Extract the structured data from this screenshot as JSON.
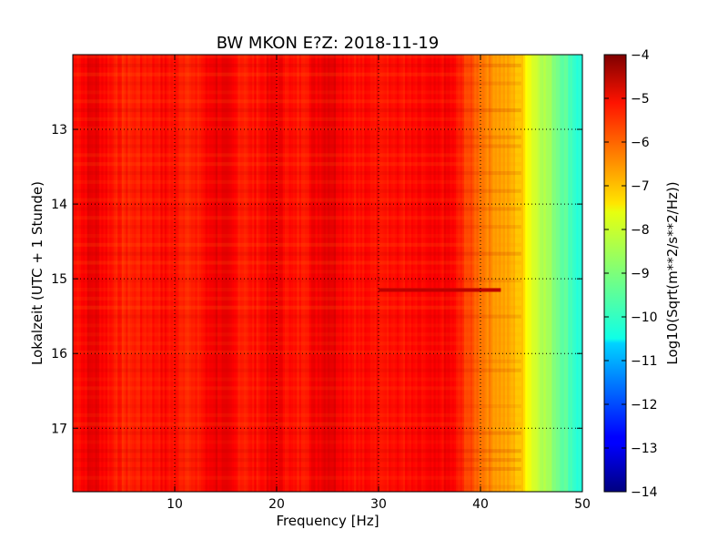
{
  "chart_data": {
    "type": "heatmap",
    "title": "BW MKON E?Z: 2018-11-19",
    "xlabel": "Frequency [Hz]",
    "ylabel": "Lokalzeit (UTC + 1 Stunde)",
    "xlim": [
      0,
      50
    ],
    "ylim": [
      12,
      17.85
    ],
    "x_ticks": [
      10,
      20,
      30,
      40,
      50
    ],
    "y_ticks": [
      13,
      14,
      15,
      16,
      17
    ],
    "y_inverted": true,
    "grid": true,
    "colorbar": {
      "label": "Log10(Sqrt(m**2/s**2/Hz))",
      "min": -14,
      "max": -4,
      "ticks": [
        -4,
        -5,
        -6,
        -7,
        -8,
        -9,
        -10,
        -11,
        -12,
        -13,
        -14
      ],
      "colormap": "jet"
    },
    "z_profile_vs_frequency": [
      {
        "x": 0,
        "z": -5.4
      },
      {
        "x": 2,
        "z": -5.0
      },
      {
        "x": 5,
        "z": -5.6
      },
      {
        "x": 9,
        "z": -5.3
      },
      {
        "x": 12,
        "z": -5.6
      },
      {
        "x": 14,
        "z": -5.0
      },
      {
        "x": 17,
        "z": -5.5
      },
      {
        "x": 20,
        "z": -5.1
      },
      {
        "x": 22,
        "z": -5.5
      },
      {
        "x": 25,
        "z": -4.9
      },
      {
        "x": 28,
        "z": -5.4
      },
      {
        "x": 30,
        "z": -5.3
      },
      {
        "x": 33,
        "z": -5.4
      },
      {
        "x": 37,
        "z": -5.2
      },
      {
        "x": 39,
        "z": -6.0
      },
      {
        "x": 41,
        "z": -6.6
      },
      {
        "x": 44,
        "z": -7.2
      },
      {
        "x": 45,
        "z": -8.0
      },
      {
        "x": 47,
        "z": -8.8
      },
      {
        "x": 50,
        "z": -10.0
      }
    ],
    "annotations": [
      {
        "text": "horizontal band near 15.15 h, 30–42 Hz",
        "x_range": [
          30,
          42
        ],
        "y": 15.15,
        "z": -4.6
      }
    ]
  }
}
